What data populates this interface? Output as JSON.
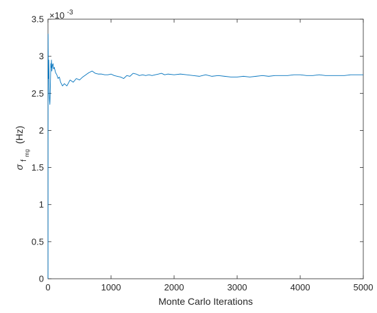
{
  "chart_data": {
    "type": "line",
    "title": "",
    "xlabel": "Monte Carlo Iterations",
    "ylabel": {
      "symbol": "σ",
      "sub": "f",
      "subsub": "mg",
      "unit": "(Hz)"
    },
    "xlim": [
      0,
      5000
    ],
    "ylim": [
      0,
      0.0035
    ],
    "y_exponent_label": "×10",
    "y_exponent_power": "-3",
    "x_ticks": [
      0,
      1000,
      2000,
      3000,
      4000,
      5000
    ],
    "x_tick_labels": [
      "0",
      "1000",
      "2000",
      "3000",
      "4000",
      "5000"
    ],
    "y_ticks": [
      0,
      0.0005,
      0.001,
      0.0015,
      0.002,
      0.0025,
      0.003,
      0.0035
    ],
    "y_tick_labels": [
      "0",
      "0.5",
      "1",
      "1.5",
      "2",
      "2.5",
      "3",
      "3.5"
    ],
    "grid": false,
    "series": [
      {
        "color": "#0072BD",
        "x": [
          1,
          2,
          3,
          5,
          8,
          12,
          15,
          20,
          25,
          30,
          35,
          40,
          45,
          50,
          55,
          60,
          70,
          80,
          90,
          100,
          120,
          140,
          160,
          180,
          200,
          230,
          260,
          300,
          350,
          400,
          450,
          500,
          550,
          600,
          650,
          700,
          750,
          800,
          850,
          900,
          950,
          1000,
          1050,
          1100,
          1150,
          1200,
          1250,
          1300,
          1350,
          1400,
          1450,
          1500,
          1550,
          1600,
          1650,
          1700,
          1750,
          1800,
          1850,
          1900,
          2000,
          2100,
          2200,
          2300,
          2400,
          2500,
          2600,
          2700,
          2800,
          2900,
          3000,
          3100,
          3200,
          3300,
          3400,
          3500,
          3600,
          3700,
          3800,
          3900,
          4000,
          4100,
          4200,
          4300,
          4400,
          4500,
          4600,
          4700,
          4800,
          4900,
          5000
        ],
        "y": [
          0.0,
          0.0033,
          0.0031,
          0.0029,
          0.0027,
          0.00295,
          0.0028,
          0.0025,
          0.0024,
          0.00235,
          0.0025,
          0.00268,
          0.0029,
          0.00285,
          0.00295,
          0.0028,
          0.00288,
          0.0029,
          0.00283,
          0.00285,
          0.00278,
          0.00275,
          0.0027,
          0.00272,
          0.00265,
          0.0026,
          0.00263,
          0.0026,
          0.00268,
          0.00265,
          0.0027,
          0.00268,
          0.00272,
          0.00275,
          0.00278,
          0.0028,
          0.00277,
          0.00276,
          0.00276,
          0.00275,
          0.00275,
          0.00276,
          0.00274,
          0.00273,
          0.00272,
          0.0027,
          0.00274,
          0.00273,
          0.00277,
          0.00276,
          0.00274,
          0.00275,
          0.00274,
          0.00275,
          0.00274,
          0.00275,
          0.00276,
          0.00277,
          0.00275,
          0.00276,
          0.00275,
          0.00276,
          0.00275,
          0.00274,
          0.00273,
          0.00275,
          0.00273,
          0.00274,
          0.00273,
          0.00272,
          0.00272,
          0.00273,
          0.00272,
          0.00273,
          0.00274,
          0.00273,
          0.00274,
          0.00274,
          0.00274,
          0.00275,
          0.00275,
          0.00274,
          0.00274,
          0.00275,
          0.00274,
          0.00274,
          0.00274,
          0.00274,
          0.00275,
          0.00275,
          0.00275
        ]
      }
    ]
  }
}
